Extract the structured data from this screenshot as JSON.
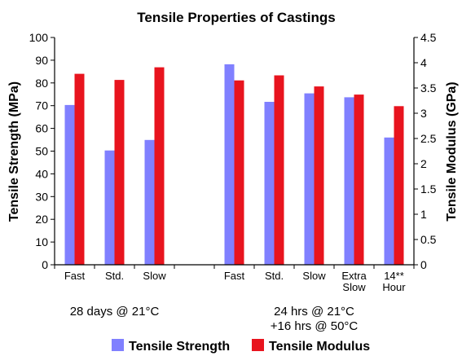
{
  "chart_data": {
    "type": "bar",
    "title": "Tensile Properties of Castings",
    "ylabel_left": "Tensile Strength (MPa)",
    "ylabel_right": "Tensile Modulus (GPa)",
    "ylim_left": [
      0,
      100
    ],
    "ylim_right": [
      0,
      4.5
    ],
    "yticks_left": [
      "0",
      "10",
      "20",
      "30",
      "40",
      "50",
      "60",
      "70",
      "80",
      "90",
      "100"
    ],
    "yticks_right": [
      "0",
      "0.5",
      "1",
      "1.5",
      "2",
      "2.5",
      "3",
      "3.5",
      "4",
      "4.5"
    ],
    "grid": false,
    "legend_position": "bottom",
    "categories": [
      {
        "label": "Fast",
        "label2": ""
      },
      {
        "label": "Std.",
        "label2": ""
      },
      {
        "label": "Slow",
        "label2": ""
      },
      {
        "label": "",
        "label2": ""
      },
      {
        "label": "Fast",
        "label2": ""
      },
      {
        "label": "Std.",
        "label2": ""
      },
      {
        "label": "Slow",
        "label2": ""
      },
      {
        "label": "Extra",
        "label2": "Slow"
      },
      {
        "label": "14**",
        "label2": "Hour"
      }
    ],
    "groups": [
      {
        "line1": "28 days @ 21°C",
        "line2": "",
        "from": 0,
        "to": 2
      },
      {
        "line1": "24 hrs @ 21°C",
        "line2": "+16 hrs @ 50°C",
        "from": 4,
        "to": 8
      }
    ],
    "series": [
      {
        "name": "Tensile Strength",
        "axis": "left",
        "color": "#8080FF",
        "values": [
          70.3,
          50.3,
          54.9,
          null,
          88.2,
          71.7,
          75.4,
          73.7,
          56.0
        ]
      },
      {
        "name": "Tensile Modulus",
        "axis": "right",
        "color": "#E8141E",
        "values": [
          3.78,
          3.66,
          3.91,
          null,
          3.65,
          3.75,
          3.53,
          3.37,
          3.14
        ]
      }
    ]
  }
}
